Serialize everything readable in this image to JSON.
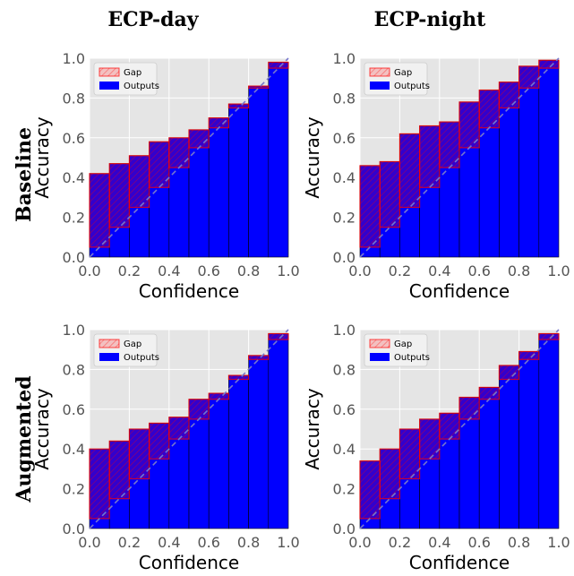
{
  "figure": {
    "column_titles": [
      "ECP-day",
      "ECP-night"
    ],
    "row_titles": [
      "Baseline",
      "Augmented"
    ]
  },
  "colors": {
    "panel_bg": "#e5e5e5",
    "grid": "#ffffff",
    "outputs": "#0000ff",
    "gap_fill": "#ff000033",
    "gap_edge": "#ff0000",
    "diagonal": "#7777cc"
  },
  "chart_data": [
    {
      "type": "bar",
      "panel": "ECP-day / Baseline",
      "xlabel": "Confidence",
      "ylabel": "Accuracy",
      "xlim": [
        0.0,
        1.0
      ],
      "ylim": [
        0.0,
        1.0
      ],
      "xticks": [
        "0.0",
        "0.2",
        "0.4",
        "0.6",
        "0.8",
        "1.0"
      ],
      "yticks": [
        "0.0",
        "0.2",
        "0.4",
        "0.6",
        "0.8",
        "1.0"
      ],
      "grid": true,
      "legend": {
        "position": "top-left",
        "entries": [
          "Gap",
          "Outputs"
        ]
      },
      "bins": [
        0.05,
        0.15,
        0.25,
        0.35,
        0.45,
        0.55,
        0.65,
        0.75,
        0.85,
        0.95
      ],
      "series": [
        {
          "name": "Outputs",
          "values": [
            0.42,
            0.47,
            0.51,
            0.58,
            0.6,
            0.64,
            0.7,
            0.77,
            0.86,
            0.98
          ]
        },
        {
          "name": "Gap",
          "values": [
            0.05,
            0.15,
            0.25,
            0.35,
            0.45,
            0.55,
            0.65,
            0.75,
            0.85,
            0.95
          ]
        }
      ]
    },
    {
      "type": "bar",
      "panel": "ECP-night / Baseline",
      "xlabel": "Confidence",
      "ylabel": "Accuracy",
      "xlim": [
        0.0,
        1.0
      ],
      "ylim": [
        0.0,
        1.0
      ],
      "xticks": [
        "0.0",
        "0.2",
        "0.4",
        "0.6",
        "0.8",
        "1.0"
      ],
      "yticks": [
        "0.0",
        "0.2",
        "0.4",
        "0.6",
        "0.8",
        "1.0"
      ],
      "grid": true,
      "legend": {
        "position": "top-left",
        "entries": [
          "Gap",
          "Outputs"
        ]
      },
      "bins": [
        0.05,
        0.15,
        0.25,
        0.35,
        0.45,
        0.55,
        0.65,
        0.75,
        0.85,
        0.95
      ],
      "series": [
        {
          "name": "Outputs",
          "values": [
            0.46,
            0.48,
            0.62,
            0.66,
            0.68,
            0.78,
            0.84,
            0.88,
            0.96,
            0.99
          ]
        },
        {
          "name": "Gap",
          "values": [
            0.05,
            0.15,
            0.25,
            0.35,
            0.45,
            0.55,
            0.65,
            0.75,
            0.85,
            0.95
          ]
        }
      ]
    },
    {
      "type": "bar",
      "panel": "ECP-day / Augmented",
      "xlabel": "Confidence",
      "ylabel": "Accuracy",
      "xlim": [
        0.0,
        1.0
      ],
      "ylim": [
        0.0,
        1.0
      ],
      "xticks": [
        "0.0",
        "0.2",
        "0.4",
        "0.6",
        "0.8",
        "1.0"
      ],
      "yticks": [
        "0.0",
        "0.2",
        "0.4",
        "0.6",
        "0.8",
        "1.0"
      ],
      "grid": true,
      "legend": {
        "position": "top-left",
        "entries": [
          "Gap",
          "Outputs"
        ]
      },
      "bins": [
        0.05,
        0.15,
        0.25,
        0.35,
        0.45,
        0.55,
        0.65,
        0.75,
        0.85,
        0.95
      ],
      "series": [
        {
          "name": "Outputs",
          "values": [
            0.4,
            0.44,
            0.5,
            0.53,
            0.56,
            0.65,
            0.68,
            0.77,
            0.87,
            0.98
          ]
        },
        {
          "name": "Gap",
          "values": [
            0.05,
            0.15,
            0.25,
            0.35,
            0.45,
            0.55,
            0.65,
            0.75,
            0.85,
            0.95
          ]
        }
      ]
    },
    {
      "type": "bar",
      "panel": "ECP-night / Augmented",
      "xlabel": "Confidence",
      "ylabel": "Accuracy",
      "xlim": [
        0.0,
        1.0
      ],
      "ylim": [
        0.0,
        1.0
      ],
      "xticks": [
        "0.0",
        "0.2",
        "0.4",
        "0.6",
        "0.8",
        "1.0"
      ],
      "yticks": [
        "0.0",
        "0.2",
        "0.4",
        "0.6",
        "0.8",
        "1.0"
      ],
      "grid": true,
      "legend": {
        "position": "top-left",
        "entries": [
          "Gap",
          "Outputs"
        ]
      },
      "bins": [
        0.05,
        0.15,
        0.25,
        0.35,
        0.45,
        0.55,
        0.65,
        0.75,
        0.85,
        0.95
      ],
      "series": [
        {
          "name": "Outputs",
          "values": [
            0.34,
            0.4,
            0.5,
            0.55,
            0.58,
            0.66,
            0.71,
            0.82,
            0.89,
            0.98
          ]
        },
        {
          "name": "Gap",
          "values": [
            0.05,
            0.15,
            0.25,
            0.35,
            0.45,
            0.55,
            0.65,
            0.75,
            0.85,
            0.95
          ]
        }
      ]
    }
  ]
}
